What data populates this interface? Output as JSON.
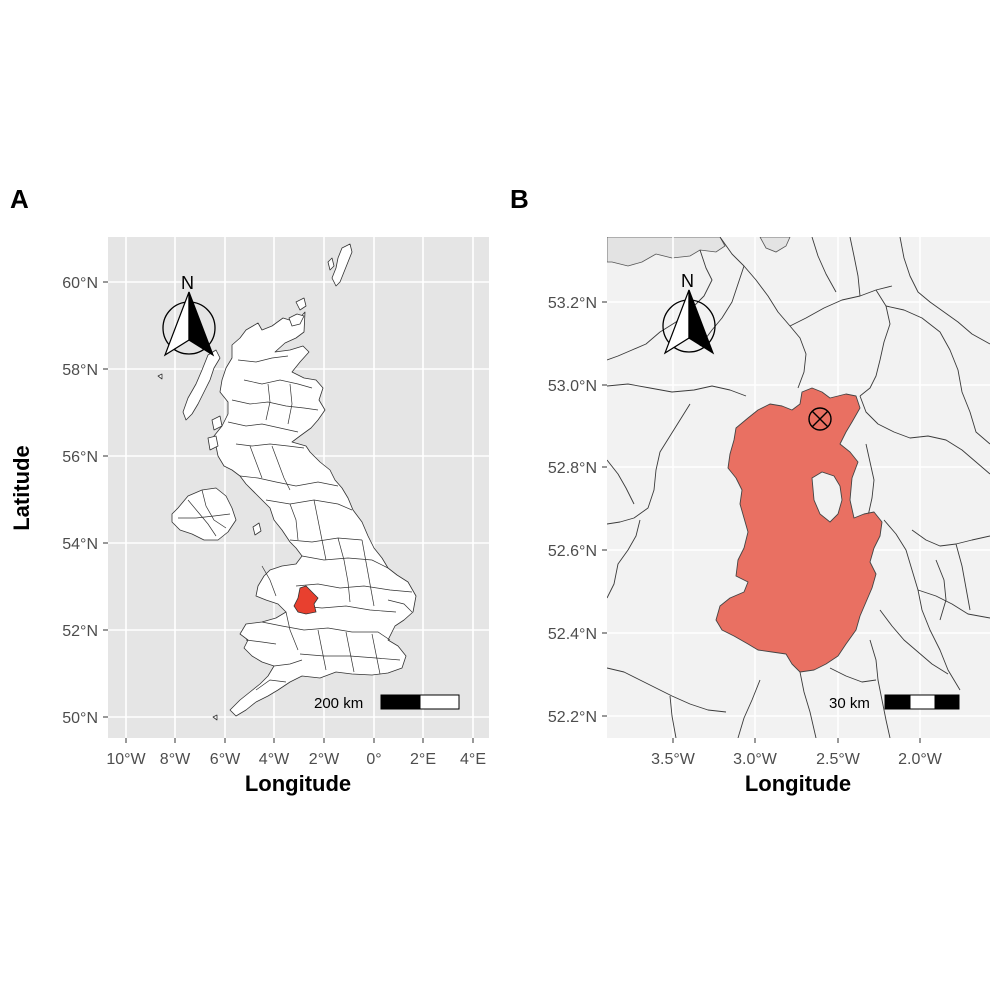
{
  "panels": [
    {
      "letter": "A",
      "x_ticks": [
        "10°W",
        "8°W",
        "6°W",
        "4°W",
        "2°W",
        "0°",
        "2°E",
        "4°E"
      ],
      "y_ticks": [
        "60°N",
        "58°N",
        "56°N",
        "54°N",
        "52°N",
        "50°N"
      ],
      "x_title": "Longitude",
      "y_title": "Latitude",
      "scale_bar_label": "200 km",
      "north_label": "N",
      "highlight_color": "#e8402f",
      "panel_bg": "#e5e5e5"
    },
    {
      "letter": "B",
      "x_ticks": [
        "3.5°W",
        "3.0°W",
        "2.5°W",
        "2.0°W"
      ],
      "y_ticks": [
        "53.2°N",
        "53.0°N",
        "52.8°N",
        "52.6°N",
        "52.4°N",
        "52.2°N"
      ],
      "x_title": "Longitude",
      "scale_bar_label": "30 km",
      "north_label": "N",
      "highlight_color": "#e8685a",
      "panel_bg": "#f2f2f2",
      "site_marker": "circled-x-icon"
    }
  ]
}
